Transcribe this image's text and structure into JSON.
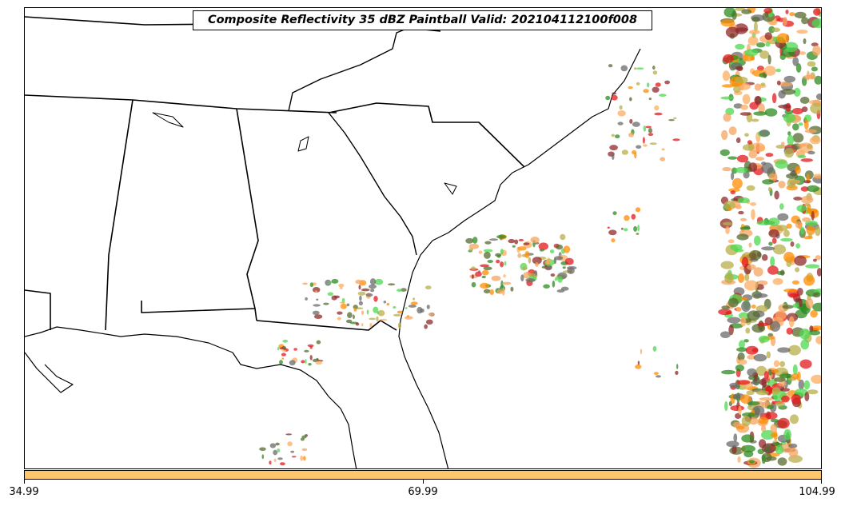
{
  "title": "Composite Reflectivity 35 dBZ Paintball Valid: 202104112100f008",
  "colorbar": {
    "color": "#fec66a",
    "ticks": [
      "34.99",
      "69.99",
      "104.99"
    ]
  },
  "palette": [
    "#2e8b22",
    "#8f2a2a",
    "#e31a1c",
    "#ff8c00",
    "#b8ae4a",
    "#4dd84d",
    "#fdae61",
    "#556b2f",
    "#6b6b6b",
    "#f4a460"
  ],
  "basemap": {
    "state_lines": true,
    "coastline": true,
    "background": "#ffffff"
  }
}
